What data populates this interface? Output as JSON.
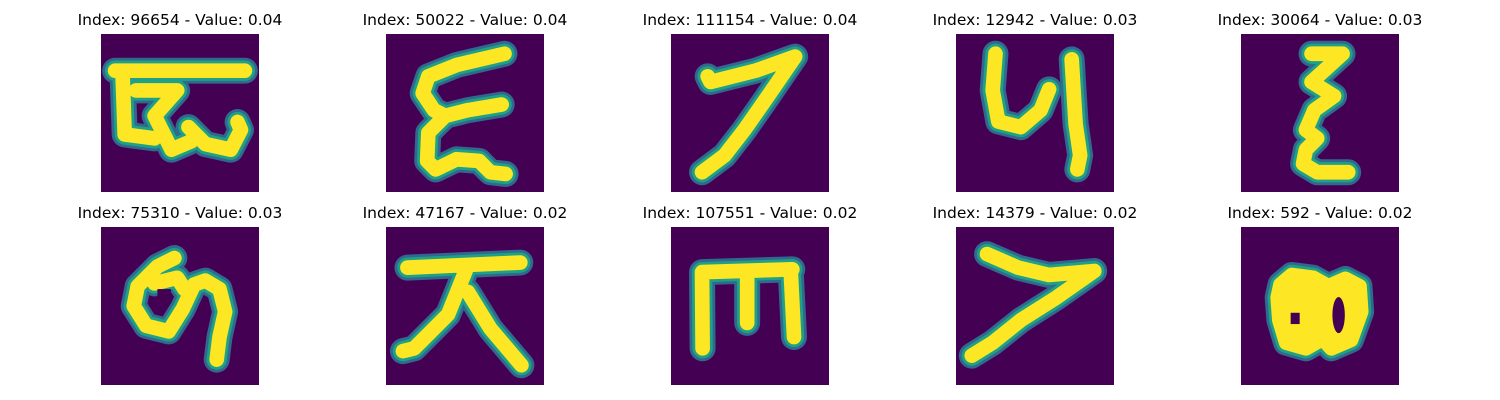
{
  "colors": {
    "background": "#440154",
    "edge_outer": "#31688e",
    "edge_mid": "#1fa187",
    "stroke": "#fde725"
  },
  "panels": [
    {
      "title": "Index: 96654 - Value: 0.04",
      "glyph": "stylized-letter-shape"
    },
    {
      "title": "Index: 50022 - Value: 0.04",
      "glyph": "stylized-letter-shape"
    },
    {
      "title": "Index: 111154 - Value: 0.04",
      "glyph": "stylized-letter-shape"
    },
    {
      "title": "Index: 12942 - Value: 0.03",
      "glyph": "stylized-letter-shape"
    },
    {
      "title": "Index: 30064 - Value: 0.03",
      "glyph": "stylized-letter-shape"
    },
    {
      "title": "Index: 75310 - Value: 0.03",
      "glyph": "stylized-letter-shape"
    },
    {
      "title": "Index: 47167 - Value: 0.02",
      "glyph": "stylized-letter-shape"
    },
    {
      "title": "Index: 107551 - Value: 0.02",
      "glyph": "stylized-letter-shape"
    },
    {
      "title": "Index: 14379 - Value: 0.02",
      "glyph": "stylized-letter-shape"
    },
    {
      "title": "Index: 592 - Value: 0.02",
      "glyph": "stylized-letter-shape"
    }
  ]
}
